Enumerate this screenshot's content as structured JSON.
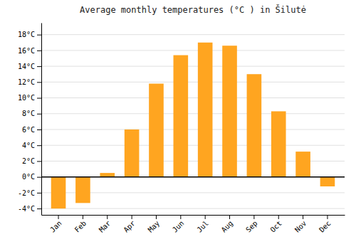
{
  "chart_data": {
    "type": "bar",
    "title": "Average monthly temperatures (°C ) in Šilutė",
    "categories": [
      "Jan",
      "Feb",
      "Mar",
      "Apr",
      "May",
      "Jun",
      "Jul",
      "Aug",
      "Sep",
      "Oct",
      "Nov",
      "Dec"
    ],
    "values": [
      -4.0,
      -3.3,
      0.5,
      6.0,
      11.8,
      15.4,
      17.0,
      16.6,
      13.0,
      8.3,
      3.2,
      -1.2
    ],
    "color": "#FFA520",
    "ylim": [
      -4.8,
      19.5
    ],
    "yticks": [
      {
        "value": -4,
        "label": "-4°C"
      },
      {
        "value": -2,
        "label": "-2°C"
      },
      {
        "value": 0,
        "label": "0°C"
      },
      {
        "value": 2,
        "label": "2°C"
      },
      {
        "value": 4,
        "label": "4°C"
      },
      {
        "value": 6,
        "label": "6°C"
      },
      {
        "value": 8,
        "label": "8°C"
      },
      {
        "value": 10,
        "label": "10°C"
      },
      {
        "value": 12,
        "label": "12°C"
      },
      {
        "value": 14,
        "label": "14°C"
      },
      {
        "value": 16,
        "label": "16°C"
      },
      {
        "value": 18,
        "label": "18°C"
      }
    ],
    "grid": true
  }
}
